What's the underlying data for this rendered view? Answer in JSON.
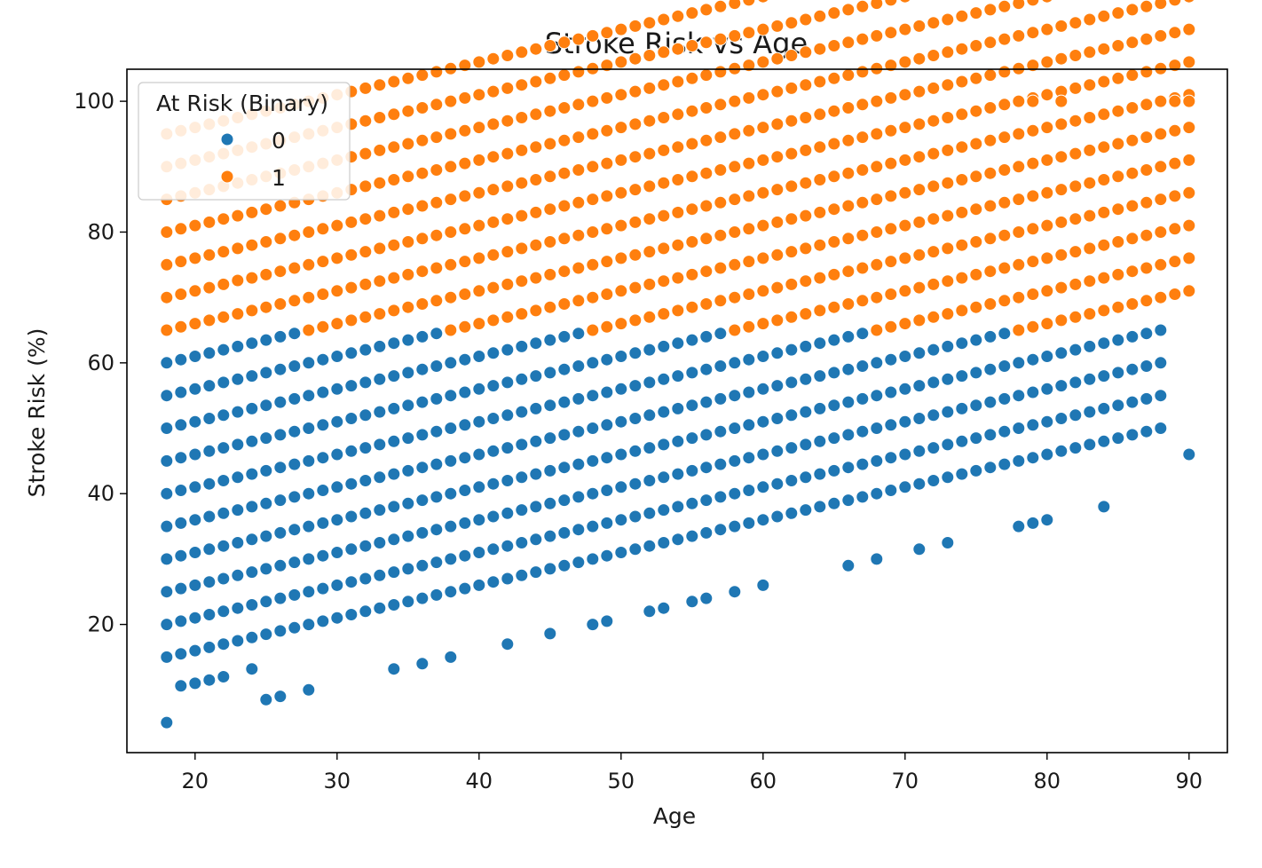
{
  "chart_data": {
    "type": "scatter",
    "title": "Stroke Risk vs Age",
    "xlabel": "Age",
    "ylabel": "Stroke Risk (%)",
    "xlim": [
      15.2,
      92.7
    ],
    "ylim": [
      0.4,
      104.9
    ],
    "xticks": [
      20,
      30,
      40,
      50,
      60,
      70,
      80,
      90
    ],
    "yticks": [
      20,
      40,
      60,
      80,
      100
    ],
    "grid": false,
    "legend": {
      "title": "At Risk (Binary)",
      "placement": "top-left",
      "entries": [
        {
          "label": "0",
          "color": "#1f77b4"
        },
        {
          "label": "1",
          "color": "#ff7f0e"
        }
      ]
    },
    "series": [
      {
        "name": "0",
        "color": "#1f77b4",
        "bands": [
          {
            "base": 15,
            "x_range": [
              18,
              88
            ]
          },
          {
            "base": 20,
            "x_range": [
              18,
              88
            ]
          },
          {
            "base": 25,
            "x_range": [
              18,
              88
            ]
          },
          {
            "base": 30,
            "x_range": [
              18,
              88
            ]
          },
          {
            "base": 35,
            "x_range": [
              18,
              77
            ]
          },
          {
            "base": 40,
            "x_range": [
              18,
              67
            ]
          },
          {
            "base": 45,
            "x_range": [
              18,
              57
            ]
          },
          {
            "base": 50,
            "x_range": [
              18,
              47
            ]
          },
          {
            "base": 55,
            "x_range": [
              18,
              37
            ]
          },
          {
            "base": 60,
            "x_range": [
              18,
              27
            ]
          }
        ],
        "points": [
          [
            18,
            5
          ],
          [
            19,
            10.6
          ],
          [
            20,
            11
          ],
          [
            21,
            11.5
          ],
          [
            22,
            12
          ],
          [
            24,
            13.2
          ],
          [
            25,
            8.5
          ],
          [
            26,
            9
          ],
          [
            28,
            10
          ],
          [
            34,
            13.2
          ],
          [
            36,
            14
          ],
          [
            38,
            15
          ],
          [
            42,
            17
          ],
          [
            45,
            18.6
          ],
          [
            48,
            20
          ],
          [
            49,
            20.5
          ],
          [
            52,
            22
          ],
          [
            53,
            22.5
          ],
          [
            55,
            23.5
          ],
          [
            56,
            24
          ],
          [
            58,
            25
          ],
          [
            60,
            26
          ],
          [
            66,
            29
          ],
          [
            68,
            30
          ],
          [
            71,
            31.5
          ],
          [
            73,
            32.5
          ],
          [
            78,
            35
          ],
          [
            79,
            35.5
          ],
          [
            80,
            36
          ],
          [
            84,
            38
          ],
          [
            90,
            46
          ]
        ]
      },
      {
        "name": "1",
        "color": "#ff7f0e",
        "bands": [
          {
            "base": 35,
            "x_range": [
              78,
              90
            ]
          },
          {
            "base": 40,
            "x_range": [
              68,
              90
            ]
          },
          {
            "base": 45,
            "x_range": [
              58,
              90
            ]
          },
          {
            "base": 50,
            "x_range": [
              48,
              90
            ]
          },
          {
            "base": 55,
            "x_range": [
              38,
              90
            ]
          },
          {
            "base": 60,
            "x_range": [
              28,
              90
            ]
          },
          {
            "base": 65,
            "x_range": [
              18,
              90
            ]
          },
          {
            "base": 70,
            "x_range": [
              18,
              90
            ]
          },
          {
            "base": 75,
            "x_range": [
              18,
              90
            ]
          },
          {
            "base": 80,
            "x_range": [
              18,
              90
            ]
          },
          {
            "base": 85,
            "x_range": [
              18,
              90
            ]
          },
          {
            "base": 90,
            "x_range": [
              18,
              90
            ]
          },
          {
            "base": 95,
            "x_range": [
              18,
              90
            ]
          }
        ],
        "points": [
          [
            21,
            71.5
          ],
          [
            23,
            72.6
          ],
          [
            24,
            73
          ],
          [
            26,
            74
          ],
          [
            26,
            79
          ],
          [
            28,
            75
          ],
          [
            29,
            75.5
          ],
          [
            30,
            76
          ],
          [
            31,
            76.5
          ],
          [
            31,
            81.5
          ],
          [
            33,
            72.5
          ],
          [
            34,
            73
          ],
          [
            35,
            73.5
          ],
          [
            39,
            80.5
          ],
          [
            40,
            81
          ],
          [
            41,
            81.5
          ],
          [
            43,
            82.5
          ],
          [
            47,
            84.5
          ],
          [
            48,
            85
          ],
          [
            53,
            87.5
          ],
          [
            54,
            88
          ],
          [
            55,
            88.5
          ],
          [
            58,
            90
          ],
          [
            63,
            92.5
          ],
          [
            64,
            93
          ],
          [
            65,
            93.5
          ],
          [
            68,
            95
          ],
          [
            69,
            95.5
          ],
          [
            71,
            96.5
          ],
          [
            72,
            97
          ],
          [
            73,
            97.5
          ],
          [
            76,
            99
          ],
          [
            77,
            99.5
          ],
          [
            78,
            100
          ],
          [
            79,
            100
          ],
          [
            81,
            100
          ],
          [
            88,
            100
          ],
          [
            89,
            100
          ],
          [
            90,
            100
          ]
        ]
      }
    ]
  }
}
